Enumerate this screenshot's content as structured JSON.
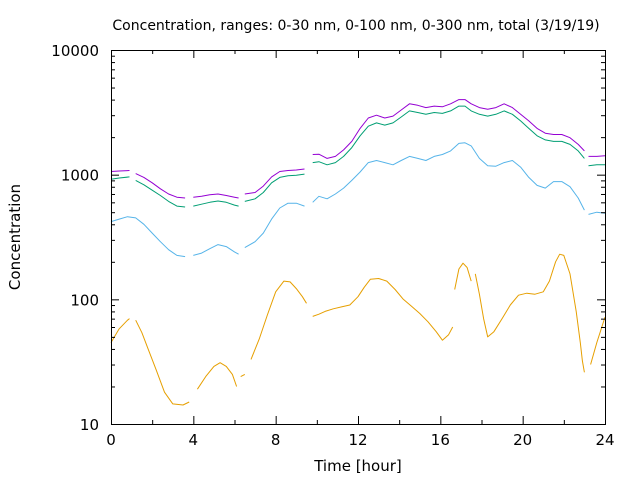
{
  "chart_data": {
    "type": "line",
    "title": "Concentration, ranges: 0-30 nm, 0-100 nm, 0-300 nm, total (3/19/19)",
    "xlabel": "Time [hour]",
    "ylabel": "Concentration",
    "xlim": [
      0,
      24
    ],
    "ylim": [
      10,
      10000
    ],
    "yscale": "log",
    "grid": false,
    "legend": "none",
    "xticks": [
      0,
      4,
      8,
      12,
      16,
      20,
      24
    ],
    "xtick_labels": [
      "0",
      "4",
      "8",
      "12",
      "16",
      "20",
      "24"
    ],
    "yticks": [
      10,
      100,
      1000,
      10000
    ],
    "ytick_labels": [
      "10",
      "100",
      "1000",
      "10000"
    ],
    "series": [
      {
        "color": "#e69f00",
        "segments": [
          [
            [
              0.0,
              45
            ],
            [
              0.4,
              58
            ],
            [
              0.8,
              68
            ],
            [
              0.9,
              70
            ]
          ],
          [
            [
              1.2,
              68
            ],
            [
              1.5,
              54
            ],
            [
              1.8,
              40
            ],
            [
              2.2,
              27
            ],
            [
              2.6,
              18
            ],
            [
              3.0,
              14.5
            ],
            [
              3.5,
              14.2
            ],
            [
              3.8,
              15
            ]
          ],
          [
            [
              4.2,
              19
            ],
            [
              4.6,
              24
            ],
            [
              5.0,
              29
            ],
            [
              5.3,
              31
            ],
            [
              5.6,
              29
            ],
            [
              5.9,
              25
            ],
            [
              6.1,
              20
            ]
          ],
          [
            [
              6.3,
              24
            ],
            [
              6.5,
              25
            ]
          ],
          [
            [
              6.8,
              33
            ],
            [
              7.2,
              48
            ],
            [
              7.6,
              75
            ],
            [
              8.0,
              115
            ],
            [
              8.4,
              140
            ],
            [
              8.7,
              138
            ],
            [
              9.0,
              122
            ],
            [
              9.3,
              105
            ],
            [
              9.5,
              93
            ]
          ],
          [
            [
              9.8,
              73
            ],
            [
              10.1,
              76
            ],
            [
              10.4,
              80
            ],
            [
              10.8,
              84
            ],
            [
              11.2,
              87
            ],
            [
              11.6,
              90
            ],
            [
              12.0,
              105
            ],
            [
              12.3,
              125
            ],
            [
              12.6,
              145
            ],
            [
              13.0,
              147
            ],
            [
              13.4,
              140
            ],
            [
              13.8,
              120
            ],
            [
              14.2,
              100
            ],
            [
              14.6,
              88
            ],
            [
              15.0,
              77
            ],
            [
              15.4,
              66
            ],
            [
              15.8,
              55
            ],
            [
              16.1,
              47
            ],
            [
              16.4,
              52
            ],
            [
              16.6,
              60
            ]
          ],
          [
            [
              16.7,
              120
            ],
            [
              16.9,
              175
            ],
            [
              17.1,
              195
            ],
            [
              17.3,
              180
            ],
            [
              17.5,
              140
            ]
          ],
          [
            [
              17.7,
              160
            ],
            [
              17.9,
              110
            ],
            [
              18.1,
              70
            ],
            [
              18.3,
              50
            ],
            [
              18.6,
              55
            ],
            [
              19.0,
              70
            ],
            [
              19.4,
              90
            ],
            [
              19.8,
              108
            ],
            [
              20.2,
              112
            ],
            [
              20.6,
              110
            ],
            [
              21.0,
              115
            ],
            [
              21.3,
              140
            ],
            [
              21.6,
              200
            ],
            [
              21.8,
              230
            ],
            [
              22.0,
              225
            ],
            [
              22.3,
              160
            ],
            [
              22.6,
              80
            ],
            [
              22.8,
              45
            ],
            [
              22.9,
              32
            ],
            [
              23.0,
              26
            ]
          ],
          [
            [
              23.3,
              30
            ],
            [
              23.6,
              45
            ],
            [
              24.0,
              72
            ]
          ]
        ]
      },
      {
        "color": "#56b4e9",
        "segments": [
          [
            [
              0.0,
              420
            ],
            [
              0.4,
              440
            ],
            [
              0.8,
              460
            ],
            [
              1.2,
              450
            ],
            [
              1.6,
              400
            ],
            [
              2.0,
              340
            ],
            [
              2.4,
              290
            ],
            [
              2.8,
              250
            ],
            [
              3.2,
              225
            ],
            [
              3.6,
              220
            ]
          ],
          [
            [
              4.0,
              225
            ],
            [
              4.4,
              235
            ],
            [
              4.8,
              255
            ],
            [
              5.2,
              275
            ],
            [
              5.6,
              265
            ],
            [
              6.0,
              240
            ],
            [
              6.2,
              230
            ]
          ],
          [
            [
              6.5,
              260
            ],
            [
              7.0,
              290
            ],
            [
              7.4,
              340
            ],
            [
              7.8,
              440
            ],
            [
              8.2,
              540
            ],
            [
              8.6,
              590
            ],
            [
              9.0,
              590
            ],
            [
              9.4,
              560
            ]
          ],
          [
            [
              9.8,
              600
            ],
            [
              10.1,
              670
            ],
            [
              10.5,
              640
            ],
            [
              10.9,
              700
            ],
            [
              11.3,
              780
            ],
            [
              11.7,
              900
            ],
            [
              12.1,
              1050
            ],
            [
              12.5,
              1250
            ],
            [
              12.9,
              1300
            ],
            [
              13.3,
              1250
            ],
            [
              13.7,
              1200
            ],
            [
              14.1,
              1300
            ],
            [
              14.5,
              1400
            ],
            [
              14.9,
              1350
            ],
            [
              15.3,
              1300
            ],
            [
              15.7,
              1400
            ],
            [
              16.1,
              1450
            ],
            [
              16.5,
              1550
            ],
            [
              16.9,
              1780
            ],
            [
              17.2,
              1800
            ],
            [
              17.5,
              1700
            ],
            [
              17.9,
              1350
            ],
            [
              18.3,
              1180
            ],
            [
              18.7,
              1170
            ],
            [
              19.1,
              1250
            ],
            [
              19.5,
              1300
            ],
            [
              19.9,
              1150
            ],
            [
              20.3,
              950
            ],
            [
              20.7,
              820
            ],
            [
              21.1,
              780
            ],
            [
              21.5,
              880
            ],
            [
              21.9,
              880
            ],
            [
              22.3,
              800
            ],
            [
              22.7,
              650
            ],
            [
              23.0,
              520
            ]
          ],
          [
            [
              23.2,
              480
            ],
            [
              23.6,
              500
            ],
            [
              24.0,
              490
            ]
          ]
        ]
      },
      {
        "color": "#009e73",
        "segments": [
          [
            [
              0.0,
              920
            ],
            [
              0.4,
              940
            ],
            [
              0.9,
              960
            ]
          ],
          [
            [
              1.2,
              900
            ],
            [
              1.6,
              830
            ],
            [
              2.0,
              750
            ],
            [
              2.4,
              680
            ],
            [
              2.8,
              610
            ],
            [
              3.2,
              560
            ],
            [
              3.6,
              550
            ]
          ],
          [
            [
              4.0,
              560
            ],
            [
              4.4,
              580
            ],
            [
              4.8,
              600
            ],
            [
              5.2,
              615
            ],
            [
              5.6,
              600
            ],
            [
              6.0,
              570
            ],
            [
              6.2,
              560
            ]
          ],
          [
            [
              6.5,
              610
            ],
            [
              7.0,
              640
            ],
            [
              7.4,
              720
            ],
            [
              7.8,
              860
            ],
            [
              8.2,
              950
            ],
            [
              8.6,
              980
            ],
            [
              9.0,
              990
            ],
            [
              9.4,
              1010
            ]
          ],
          [
            [
              9.8,
              1250
            ],
            [
              10.1,
              1270
            ],
            [
              10.5,
              1200
            ],
            [
              10.9,
              1250
            ],
            [
              11.3,
              1400
            ],
            [
              11.7,
              1650
            ],
            [
              12.1,
              2050
            ],
            [
              12.5,
              2450
            ],
            [
              12.9,
              2600
            ],
            [
              13.3,
              2500
            ],
            [
              13.7,
              2600
            ],
            [
              14.1,
              2900
            ],
            [
              14.5,
              3250
            ],
            [
              14.9,
              3150
            ],
            [
              15.3,
              3050
            ],
            [
              15.7,
              3150
            ],
            [
              16.1,
              3100
            ],
            [
              16.5,
              3250
            ],
            [
              16.9,
              3550
            ],
            [
              17.2,
              3550
            ],
            [
              17.5,
              3250
            ],
            [
              17.9,
              3050
            ],
            [
              18.3,
              2950
            ],
            [
              18.7,
              3050
            ],
            [
              19.1,
              3250
            ],
            [
              19.5,
              3050
            ],
            [
              19.9,
              2700
            ],
            [
              20.3,
              2350
            ],
            [
              20.7,
              2050
            ],
            [
              21.1,
              1900
            ],
            [
              21.5,
              1850
            ],
            [
              21.9,
              1850
            ],
            [
              22.3,
              1750
            ],
            [
              22.7,
              1550
            ],
            [
              23.0,
              1350
            ]
          ],
          [
            [
              23.2,
              1180
            ],
            [
              23.6,
              1200
            ],
            [
              24.0,
              1200
            ]
          ]
        ]
      },
      {
        "color": "#9400d3",
        "segments": [
          [
            [
              0.0,
              1060
            ],
            [
              0.4,
              1070
            ],
            [
              0.9,
              1080
            ]
          ],
          [
            [
              1.2,
              1020
            ],
            [
              1.6,
              950
            ],
            [
              2.0,
              860
            ],
            [
              2.4,
              770
            ],
            [
              2.8,
              700
            ],
            [
              3.2,
              660
            ],
            [
              3.6,
              650
            ]
          ],
          [
            [
              4.0,
              660
            ],
            [
              4.4,
              670
            ],
            [
              4.8,
              690
            ],
            [
              5.2,
              700
            ],
            [
              5.6,
              680
            ],
            [
              6.0,
              660
            ],
            [
              6.2,
              650
            ]
          ],
          [
            [
              6.5,
              700
            ],
            [
              7.0,
              720
            ],
            [
              7.4,
              810
            ],
            [
              7.8,
              960
            ],
            [
              8.2,
              1060
            ],
            [
              8.6,
              1080
            ],
            [
              9.0,
              1090
            ],
            [
              9.4,
              1110
            ]
          ],
          [
            [
              9.8,
              1450
            ],
            [
              10.1,
              1460
            ],
            [
              10.5,
              1350
            ],
            [
              10.9,
              1400
            ],
            [
              11.3,
              1580
            ],
            [
              11.7,
              1850
            ],
            [
              12.1,
              2350
            ],
            [
              12.5,
              2850
            ],
            [
              12.9,
              3000
            ],
            [
              13.3,
              2850
            ],
            [
              13.7,
              2950
            ],
            [
              14.1,
              3300
            ],
            [
              14.5,
              3700
            ],
            [
              14.9,
              3600
            ],
            [
              15.3,
              3450
            ],
            [
              15.7,
              3550
            ],
            [
              16.1,
              3500
            ],
            [
              16.5,
              3700
            ],
            [
              16.9,
              4000
            ],
            [
              17.2,
              4000
            ],
            [
              17.5,
              3700
            ],
            [
              17.9,
              3450
            ],
            [
              18.3,
              3350
            ],
            [
              18.7,
              3450
            ],
            [
              19.1,
              3700
            ],
            [
              19.5,
              3450
            ],
            [
              19.9,
              3050
            ],
            [
              20.3,
              2700
            ],
            [
              20.7,
              2350
            ],
            [
              21.1,
              2150
            ],
            [
              21.5,
              2100
            ],
            [
              21.9,
              2100
            ],
            [
              22.3,
              1980
            ],
            [
              22.7,
              1750
            ],
            [
              23.0,
              1550
            ]
          ],
          [
            [
              23.2,
              1400
            ],
            [
              23.6,
              1400
            ],
            [
              24.0,
              1420
            ]
          ]
        ]
      }
    ]
  }
}
